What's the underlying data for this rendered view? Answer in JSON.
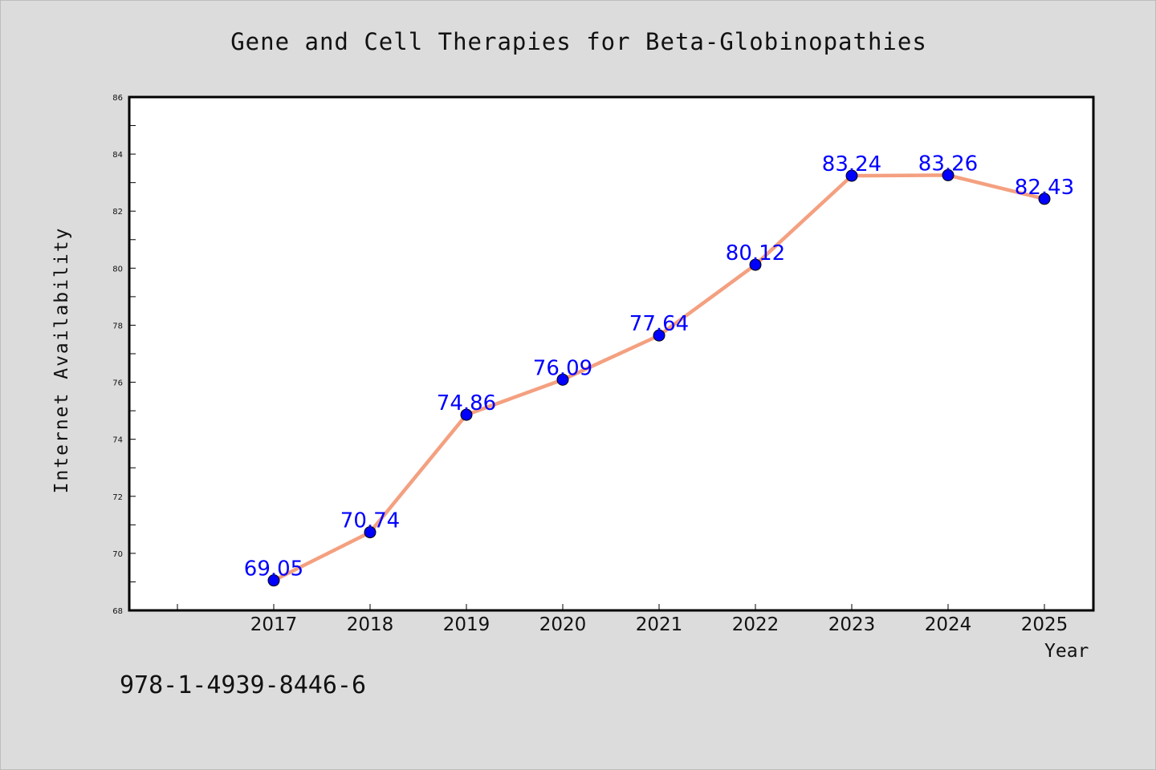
{
  "chart_data": {
    "type": "line",
    "title": "Gene and Cell Therapies for Beta-Globinopathies",
    "xlabel": "Year",
    "ylabel": "Internet Availability",
    "categories": [
      "2017",
      "2018",
      "2019",
      "2020",
      "2021",
      "2022",
      "2023",
      "2024",
      "2025"
    ],
    "series": [
      {
        "values": [
          69.05,
          70.74,
          74.86,
          76.09,
          77.64,
          80.12,
          83.24,
          83.26,
          82.43
        ],
        "labels": [
          "69.05",
          "70.74",
          "74.86",
          "76.09",
          "77.64",
          "80.12",
          "83.24",
          "83.26",
          "82.43"
        ],
        "line_color": "#f4a080",
        "marker_color": "#0000ff"
      }
    ],
    "ylim": [
      68,
      86
    ],
    "yticks": [
      "68",
      "70",
      "72",
      "74",
      "76",
      "78",
      "80",
      "82",
      "84",
      "86"
    ],
    "grid": false,
    "legend": "none"
  },
  "annotation": {
    "isbn": "978-1-4939-8446-6"
  }
}
